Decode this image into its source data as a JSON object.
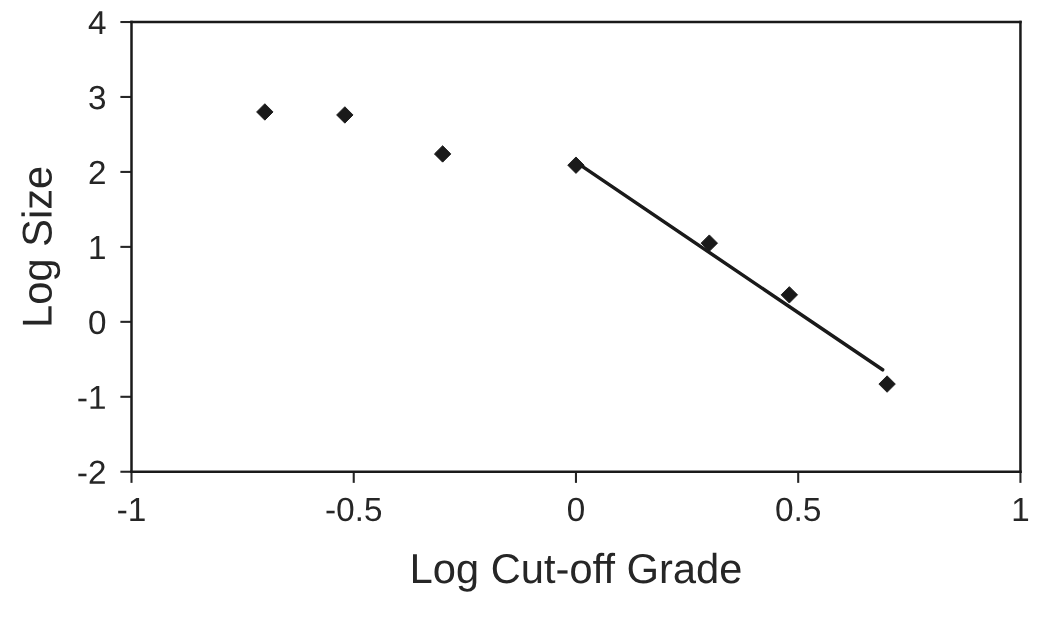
{
  "chart_data": {
    "type": "scatter",
    "xlabel": "Log Cut-off Grade",
    "ylabel": "Log Size",
    "xlim": [
      -1,
      1
    ],
    "ylim": [
      -2,
      4
    ],
    "xticks": [
      -1,
      -0.5,
      0,
      0.5,
      1
    ],
    "yticks": [
      -2,
      -1,
      0,
      1,
      2,
      3,
      4
    ],
    "grid": false,
    "legend": false,
    "series": [
      {
        "color": "#1a1a1a",
        "marker": "diamond",
        "x": [
          -0.7,
          -0.52,
          -0.3,
          0.0,
          0.3,
          0.48,
          0.7
        ],
        "values": [
          2.8,
          2.76,
          2.24,
          2.09,
          1.05,
          0.36,
          -0.83
        ]
      },
      {
        "type": "line",
        "color": "#1a1a1a",
        "marker": "none",
        "line_style": "solid",
        "x": [
          0.0,
          0.69
        ],
        "values": [
          2.13,
          -0.64
        ]
      }
    ]
  }
}
